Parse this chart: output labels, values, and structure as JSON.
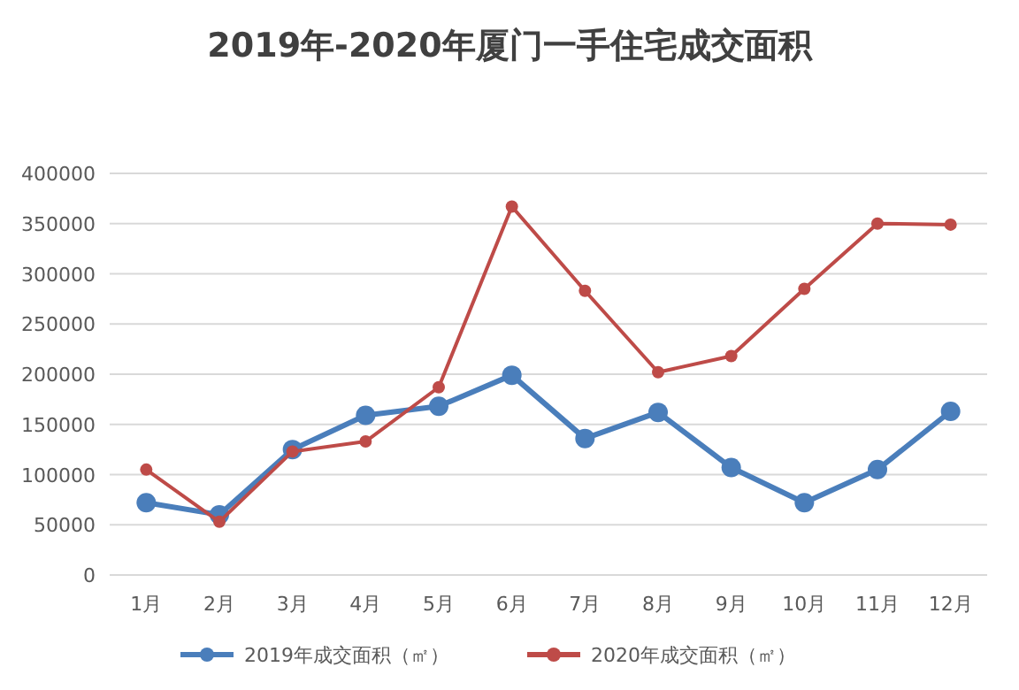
{
  "chart_data": {
    "type": "line",
    "title": "2019年-2020年厦门一手住宅成交面积",
    "categories": [
      "1月",
      "2月",
      "3月",
      "4月",
      "5月",
      "6月",
      "7月",
      "8月",
      "9月",
      "10月",
      "11月",
      "12月"
    ],
    "series": [
      {
        "name": "2019年成交面积（㎡）",
        "color": "#4a7ebb",
        "values": [
          72000,
          60000,
          125000,
          159000,
          168000,
          199000,
          136000,
          162000,
          107000,
          72000,
          105000,
          163000
        ]
      },
      {
        "name": "2020年成交面积（㎡）",
        "color": "#be4b48",
        "values": [
          105000,
          53000,
          123000,
          133000,
          187000,
          367000,
          283000,
          202000,
          218000,
          285000,
          350000,
          349000
        ]
      }
    ],
    "ylim": [
      0,
      400000
    ],
    "yticks": [
      0,
      50000,
      100000,
      150000,
      200000,
      250000,
      300000,
      350000,
      400000
    ],
    "grid": "y",
    "legend": "bottom",
    "marker": "circle",
    "line_style": "solid"
  }
}
